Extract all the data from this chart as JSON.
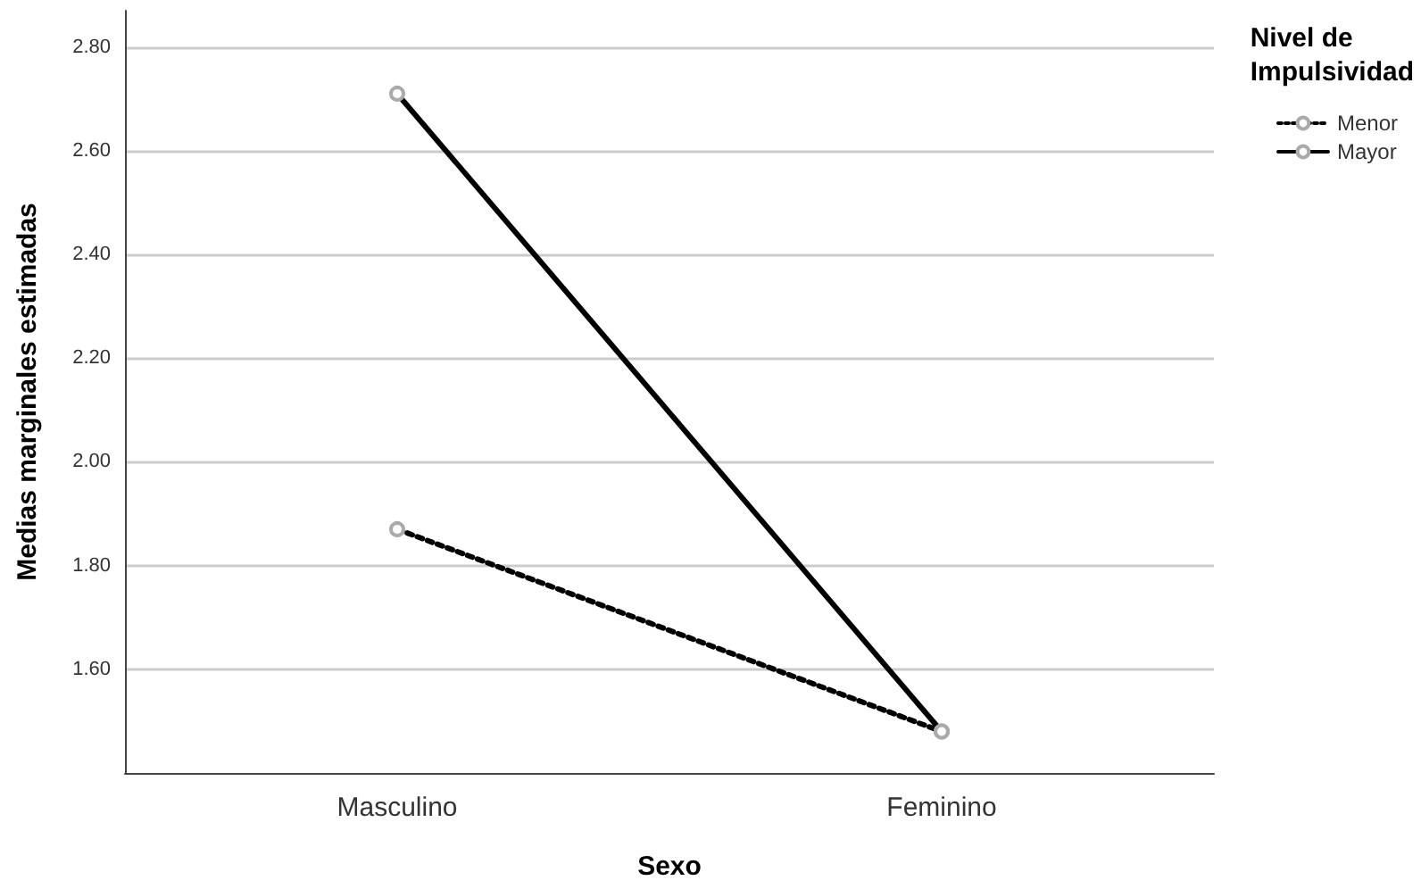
{
  "chart_data": {
    "type": "line",
    "xlabel": "Sexo",
    "ylabel": "Medias marginales estimadas",
    "legend_title": "Nivel de Impulsividad",
    "categories": [
      "Masculino",
      "Feminino"
    ],
    "series": [
      {
        "name": "Menor",
        "color": "#000000",
        "values": [
          1.87,
          1.48
        ],
        "line_style": "dotted"
      },
      {
        "name": "Mayor",
        "color": "#000000",
        "values": [
          2.71,
          1.48
        ],
        "line_style": "solid"
      }
    ],
    "ylim": [
      1.4,
      2.87
    ],
    "yticks": [
      {
        "value": 1.6,
        "label": "1.60"
      },
      {
        "value": 1.8,
        "label": "1.80"
      },
      {
        "value": 2.0,
        "label": "2.00"
      },
      {
        "value": 2.2,
        "label": "2.20"
      },
      {
        "value": 2.4,
        "label": "2.40"
      },
      {
        "value": 2.6,
        "label": "2.60"
      },
      {
        "value": 2.8,
        "label": "2.80"
      }
    ],
    "grid": "y",
    "legend": "right",
    "marker": "circle"
  }
}
